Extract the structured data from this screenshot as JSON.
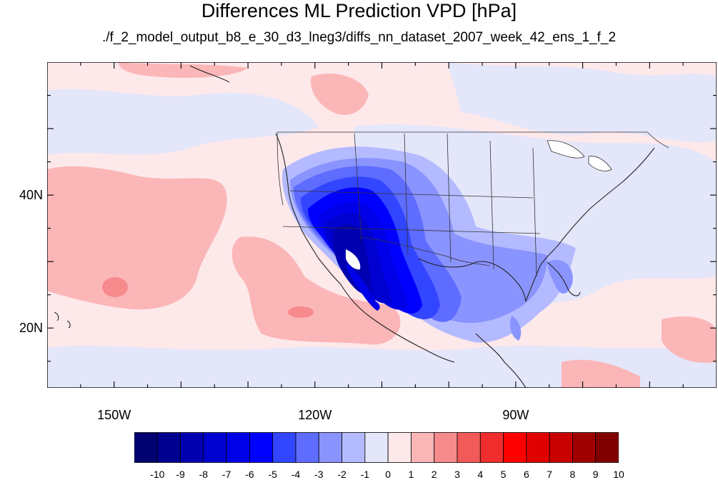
{
  "title": "Differences ML Prediction VPD [hPa]",
  "subtitle": "./f_2_model_output_b8_e_30_d3_lneg3/diffs_nn_dataset_2007_week_42_ens_1_f_2",
  "map": {
    "projection": "cylindrical-equidistant",
    "lon_range": [
      -160,
      -60
    ],
    "lat_range": [
      11,
      60
    ],
    "lat_labels": [
      {
        "text": "40N",
        "lat": 40
      },
      {
        "text": "20N",
        "lat": 20
      }
    ],
    "lon_labels": [
      {
        "text": "150W",
        "lon": -150
      },
      {
        "text": "120W",
        "lon": -120
      },
      {
        "text": "90W",
        "lon": -90
      }
    ],
    "background_color": "#fde8ea"
  },
  "colorbar": {
    "labels": [
      "-10",
      "-9",
      "-8",
      "-7",
      "-6",
      "-5",
      "-4",
      "-3",
      "-2",
      "-1",
      "0",
      "1",
      "2",
      "3",
      "4",
      "5",
      "6",
      "7",
      "8",
      "9",
      "10"
    ],
    "colors": [
      "#00006e",
      "#000090",
      "#0000b0",
      "#0000d0",
      "#0000e8",
      "#0000ff",
      "#3346ff",
      "#5e6cff",
      "#8a94ff",
      "#b4baff",
      "#e4e6fa",
      "#fde8ea",
      "#fbb6b8",
      "#f68a8c",
      "#f25a5a",
      "#ef2d2d",
      "#ff0000",
      "#e00000",
      "#c80000",
      "#a00000",
      "#800000"
    ]
  }
}
